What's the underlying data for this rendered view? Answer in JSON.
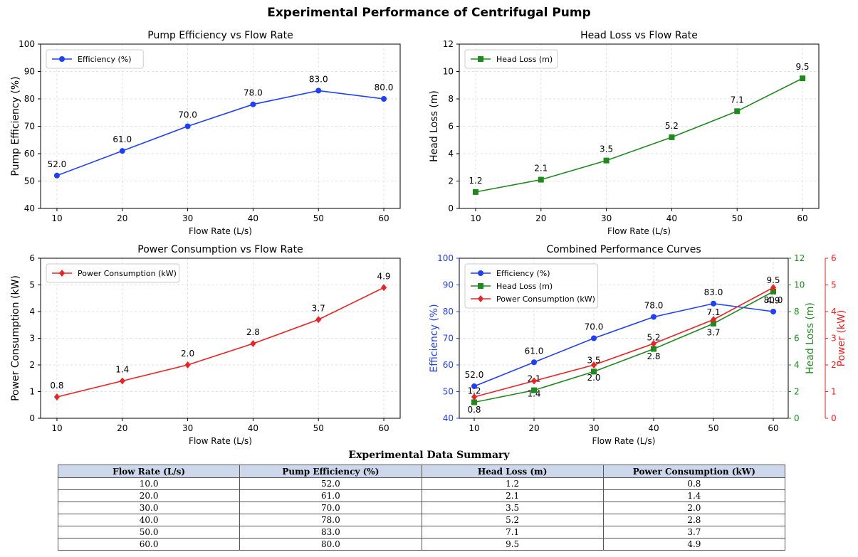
{
  "title": "Experimental Performance of Centrifugal Pump",
  "colors": {
    "efficiency": "#1f3fff",
    "head_loss": "#1e8a1e",
    "power": "#ee2222",
    "grid": "#d9d9d9",
    "table_header": "#cdd8ec"
  },
  "chart_data": [
    {
      "type": "line",
      "title": "Pump Efficiency vs Flow Rate",
      "xlabel": "Flow Rate (L/s)",
      "ylabel": "Pump Efficiency (%)",
      "x": [
        10,
        20,
        30,
        40,
        50,
        60
      ],
      "xticks": [
        10,
        20,
        30,
        40,
        50,
        60
      ],
      "ylim": [
        40,
        100
      ],
      "yticks": [
        40,
        50,
        60,
        70,
        80,
        90,
        100
      ],
      "grid": true,
      "legend_position": "top-left",
      "series": [
        {
          "name": "Efficiency (%)",
          "values": [
            52.0,
            61.0,
            70.0,
            78.0,
            83.0,
            80.0
          ],
          "labels": [
            "52.0",
            "61.0",
            "70.0",
            "78.0",
            "83.0",
            "80.0"
          ],
          "color": "#1f3fff",
          "marker": "circle"
        }
      ]
    },
    {
      "type": "line",
      "title": "Head Loss vs Flow Rate",
      "xlabel": "Flow Rate (L/s)",
      "ylabel": "Head Loss (m)",
      "x": [
        10,
        20,
        30,
        40,
        50,
        60
      ],
      "xticks": [
        10,
        20,
        30,
        40,
        50,
        60
      ],
      "ylim": [
        0,
        12
      ],
      "yticks": [
        0,
        2,
        4,
        6,
        8,
        10,
        12
      ],
      "grid": true,
      "legend_position": "top-left",
      "series": [
        {
          "name": "Head Loss (m)",
          "values": [
            1.2,
            2.1,
            3.5,
            5.2,
            7.1,
            9.5
          ],
          "labels": [
            "1.2",
            "2.1",
            "3.5",
            "5.2",
            "7.1",
            "9.5"
          ],
          "color": "#1e8a1e",
          "marker": "square"
        }
      ]
    },
    {
      "type": "line",
      "title": "Power Consumption vs Flow Rate",
      "xlabel": "Flow Rate (L/s)",
      "ylabel": "Power Consumption (kW)",
      "x": [
        10,
        20,
        30,
        40,
        50,
        60
      ],
      "xticks": [
        10,
        20,
        30,
        40,
        50,
        60
      ],
      "ylim": [
        0,
        6
      ],
      "yticks": [
        0,
        1,
        2,
        3,
        4,
        5,
        6
      ],
      "grid": true,
      "legend_position": "top-left",
      "series": [
        {
          "name": "Power Consumption (kW)",
          "values": [
            0.8,
            1.4,
            2.0,
            2.8,
            3.7,
            4.9
          ],
          "labels": [
            "0.8",
            "1.4",
            "2.0",
            "2.8",
            "3.7",
            "4.9"
          ],
          "color": "#ee2222",
          "marker": "diamond"
        }
      ]
    },
    {
      "type": "line",
      "title": "Combined Performance Curves",
      "xlabel": "Flow Rate (L/s)",
      "x": [
        10,
        20,
        30,
        40,
        50,
        60
      ],
      "xticks": [
        10,
        20,
        30,
        40,
        50,
        60
      ],
      "grid": true,
      "legend_position": "top-left",
      "axes": [
        {
          "label": "Efficiency (%)",
          "ylim": [
            40,
            100
          ],
          "yticks": [
            40,
            50,
            60,
            70,
            80,
            90,
            100
          ],
          "color": "#1f3fff",
          "side": "left"
        },
        {
          "label": "Head Loss (m)",
          "ylim": [
            0,
            12
          ],
          "yticks": [
            0,
            2,
            4,
            6,
            8,
            10,
            12
          ],
          "color": "#1e8a1e",
          "side": "right"
        },
        {
          "label": "Power (kW)",
          "ylim": [
            0,
            6
          ],
          "yticks": [
            0,
            1,
            2,
            3,
            4,
            5,
            6
          ],
          "color": "#ee2222",
          "side": "right-outer"
        }
      ],
      "series": [
        {
          "name": "Efficiency (%)",
          "axis": 0,
          "values": [
            52.0,
            61.0,
            70.0,
            78.0,
            83.0,
            80.0
          ],
          "labels": [
            "52.0",
            "61.0",
            "70.0",
            "78.0",
            "83.0",
            "80.0"
          ],
          "color": "#1f3fff",
          "marker": "circle"
        },
        {
          "name": "Head Loss (m)",
          "axis": 1,
          "values": [
            1.2,
            2.1,
            3.5,
            5.2,
            7.1,
            9.5
          ],
          "labels": [
            "1.2",
            "2.1",
            "3.5",
            "5.2",
            "7.1",
            "9.5"
          ],
          "color": "#1e8a1e",
          "marker": "square"
        },
        {
          "name": "Power Consumption (kW)",
          "axis": 2,
          "values": [
            0.8,
            1.4,
            2.0,
            2.8,
            3.7,
            4.9
          ],
          "labels": [
            "0.8",
            "1.4",
            "2.0",
            "2.8",
            "3.7",
            "4.9"
          ],
          "color": "#ee2222",
          "marker": "diamond"
        }
      ]
    },
    {
      "type": "table",
      "title": "Experimental Data Summary",
      "columns": [
        "Flow Rate (L/s)",
        "Pump Efficiency (%)",
        "Head Loss (m)",
        "Power Consumption (kW)"
      ],
      "rows": [
        [
          "10.0",
          "52.0",
          "1.2",
          "0.8"
        ],
        [
          "20.0",
          "61.0",
          "2.1",
          "1.4"
        ],
        [
          "30.0",
          "70.0",
          "3.5",
          "2.0"
        ],
        [
          "40.0",
          "78.0",
          "5.2",
          "2.8"
        ],
        [
          "50.0",
          "83.0",
          "7.1",
          "3.7"
        ],
        [
          "60.0",
          "80.0",
          "9.5",
          "4.9"
        ]
      ]
    }
  ]
}
